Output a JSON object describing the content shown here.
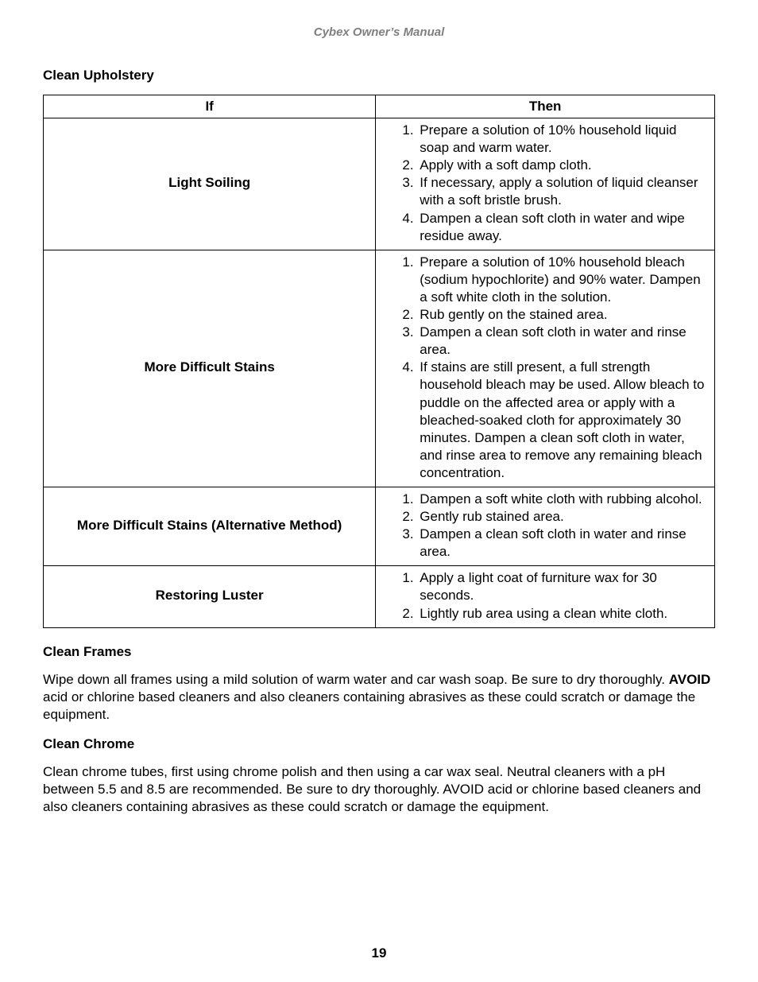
{
  "colors": {
    "text": "#000000",
    "header_text": "#808080",
    "background": "#ffffff",
    "border": "#000000"
  },
  "typography": {
    "body_fontsize_pt": 13,
    "heading_fontsize_pt": 13,
    "header_fontsize_pt": 11,
    "font_family": "Arial"
  },
  "header": {
    "title": "Cybex Owner’s Manual"
  },
  "section1": {
    "heading": "Clean Upholstery",
    "table": {
      "columns": {
        "if": "If",
        "then": "Then"
      },
      "col_widths_pct": [
        49.5,
        50.5
      ],
      "rows": [
        {
          "if": "Light Soiling",
          "then": [
            "Prepare a solution of 10% household liquid soap and warm water.",
            "Apply with a soft damp cloth.",
            "If necessary, apply a solution of liquid cleanser with a soft bristle brush.",
            "Dampen a clean soft cloth in water and wipe residue away."
          ]
        },
        {
          "if": "More Difficult Stains",
          "then": [
            "Prepare a solution of 10% household bleach (sodium hypochlorite) and 90% water. Dampen a soft white cloth in the solution.",
            "Rub gently on the stained area.",
            "Dampen a clean soft cloth in water and rinse area.",
            "If stains are still present, a full strength household bleach may be used. Allow bleach to puddle on the affected area or apply with a bleached-soaked cloth for approximately 30 minutes. Dampen a clean soft cloth in water, and rinse area to remove any remaining bleach concentration."
          ]
        },
        {
          "if": "More Difficult Stains (Alternative Method)",
          "then": [
            "Dampen a soft white cloth with rubbing alcohol.",
            "Gently rub stained area.",
            "Dampen a clean soft cloth in water and rinse area."
          ]
        },
        {
          "if": "Restoring Luster",
          "then": [
            "Apply a light coat of furniture wax for 30 seconds.",
            "Lightly rub area using a clean white cloth."
          ]
        }
      ]
    }
  },
  "section2": {
    "heading": "Clean Frames",
    "para_pre": "Wipe down all frames using a mild solution of warm water and car wash soap. Be sure to dry thoroughly. ",
    "para_bold": "AVOID",
    "para_post": " acid or chlorine based cleaners and also cleaners containing abrasives as these could scratch or damage the equipment."
  },
  "section3": {
    "heading": "Clean Chrome",
    "para": "Clean chrome tubes, first using chrome polish and then using a car wax seal. Neutral cleaners with a pH between 5.5 and 8.5 are recommended. Be sure to dry thoroughly. AVOID acid or chlorine based cleaners and also cleaners containing abrasives as these could scratch or damage the equipment."
  },
  "page_number": "19"
}
